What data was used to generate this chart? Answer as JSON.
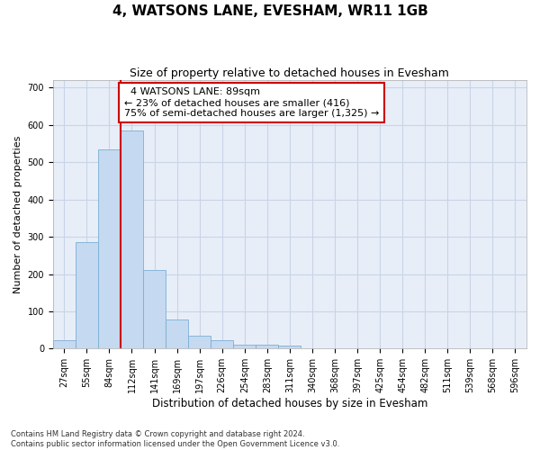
{
  "title": "4, WATSONS LANE, EVESHAM, WR11 1GB",
  "subtitle": "Size of property relative to detached houses in Evesham",
  "xlabel": "Distribution of detached houses by size in Evesham",
  "ylabel": "Number of detached properties",
  "bin_labels": [
    "27sqm",
    "55sqm",
    "84sqm",
    "112sqm",
    "141sqm",
    "169sqm",
    "197sqm",
    "226sqm",
    "254sqm",
    "283sqm",
    "311sqm",
    "340sqm",
    "368sqm",
    "397sqm",
    "425sqm",
    "454sqm",
    "482sqm",
    "511sqm",
    "539sqm",
    "568sqm",
    "596sqm"
  ],
  "bar_values": [
    22,
    285,
    535,
    585,
    210,
    78,
    35,
    22,
    10,
    10,
    7,
    0,
    0,
    0,
    0,
    0,
    0,
    0,
    0,
    0,
    0
  ],
  "bar_color": "#c5d9f0",
  "bar_edge_color": "#7bafd4",
  "property_line_x": 2.5,
  "annotation_text": "  4 WATSONS LANE: 89sqm\n← 23% of detached houses are smaller (416)\n75% of semi-detached houses are larger (1,325) →",
  "annotation_box_color": "#ffffff",
  "annotation_box_edge": "#cc0000",
  "vline_color": "#cc0000",
  "ylim": [
    0,
    720
  ],
  "yticks": [
    0,
    100,
    200,
    300,
    400,
    500,
    600,
    700
  ],
  "grid_color": "#c8d4e8",
  "background_color": "#e8eef8",
  "footnote": "Contains HM Land Registry data © Crown copyright and database right 2024.\nContains public sector information licensed under the Open Government Licence v3.0.",
  "title_fontsize": 11,
  "subtitle_fontsize": 9,
  "annotation_fontsize": 8,
  "tick_fontsize": 7,
  "ylabel_fontsize": 8,
  "xlabel_fontsize": 8.5,
  "footnote_fontsize": 6
}
